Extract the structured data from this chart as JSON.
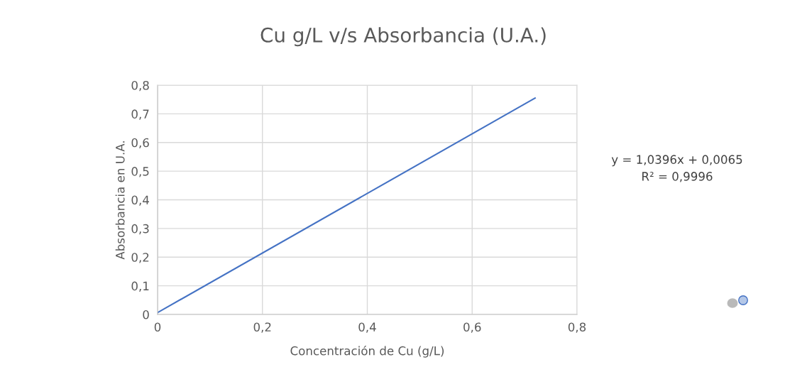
{
  "chart_data": {
    "type": "line",
    "title": "Cu g/L v/s Absorbancia (U.A.)",
    "xlabel": "Concentración de Cu (g/L)",
    "ylabel": "Absorbancia en U.A.",
    "x": [
      0,
      0.72
    ],
    "series": [
      {
        "color": "#4472c4",
        "values": [
          0.0065,
          0.755
        ]
      }
    ],
    "xlim": [
      0,
      0.8
    ],
    "ylim": [
      0,
      0.8
    ],
    "xticks": [
      0,
      {
        "value": 0.2,
        "label": "0,2"
      },
      {
        "value": 0.4,
        "label": "0,4"
      },
      {
        "value": 0.6,
        "label": "0,6"
      },
      {
        "value": 0.8,
        "label": "0,8"
      }
    ],
    "yticks": [
      0,
      {
        "value": 0.1,
        "label": "0,1"
      },
      {
        "value": 0.2,
        "label": "0,2"
      },
      {
        "value": 0.3,
        "label": "0,3"
      },
      {
        "value": 0.4,
        "label": "0,4"
      },
      {
        "value": 0.5,
        "label": "0,5"
      },
      {
        "value": 0.6,
        "label": "0,6"
      },
      {
        "value": 0.7,
        "label": "0,7"
      },
      {
        "value": 0.8,
        "label": "0,8"
      }
    ],
    "grid": true,
    "marker": "none",
    "line_style": "solid",
    "annotations": [
      "y = 1,0396x + 0,0065\nR² = 0,9996"
    ]
  }
}
